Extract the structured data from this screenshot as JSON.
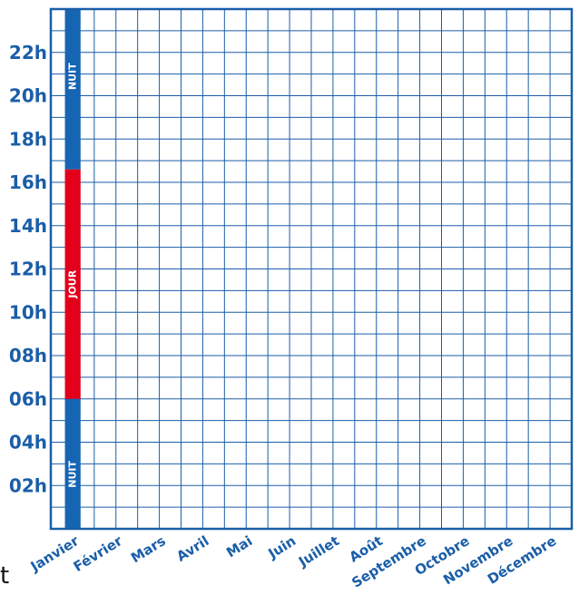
{
  "chart_data": {
    "type": "heatmap",
    "title": "",
    "xlabel": "",
    "ylabel": "",
    "categories": [
      "Janvier",
      "Février",
      "Mars",
      "Avril",
      "Mai",
      "Juin",
      "Juillet",
      "Août",
      "Septembre",
      "Octobre",
      "Novembre",
      "Décembre"
    ],
    "subdivisions_per_month": 2,
    "y_range": [
      0,
      24
    ],
    "y_ticks": [
      "02h",
      "04h",
      "06h",
      "08h",
      "10h",
      "12h",
      "14h",
      "16h",
      "18h",
      "20h",
      "22h"
    ],
    "y_tick_values": [
      2,
      4,
      6,
      8,
      10,
      12,
      14,
      16,
      18,
      20,
      22
    ],
    "grid": true,
    "bands": [
      {
        "label": "NUIT",
        "month": "Janvier",
        "from": 0,
        "to": 6,
        "color": "#1565b3"
      },
      {
        "label": "JOUR",
        "month": "Janvier",
        "from": 6,
        "to": 16.6,
        "color": "#e2001a"
      },
      {
        "label": "NUIT",
        "month": "Janvier",
        "from": 16.6,
        "to": 24,
        "color": "#1565b3"
      }
    ],
    "grid_color": "#1a5ea8"
  },
  "stray_text": "t"
}
